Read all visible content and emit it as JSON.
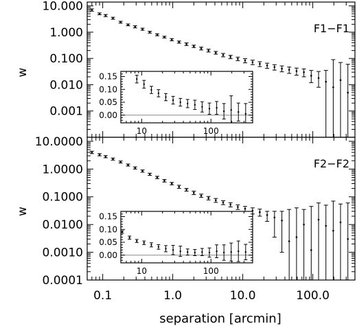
{
  "chart_data": [
    {
      "type": "scatter",
      "panel_label": "F1−F1",
      "ylabel": "w",
      "xlabel": "",
      "xscale": "log",
      "yscale": "log",
      "xlim": [
        0.06,
        400
      ],
      "ylim": [
        0.0001,
        14
      ],
      "x_tick_labels": [],
      "y_tick_labels": [
        {
          "value": 10,
          "label": "10.000"
        },
        {
          "value": 1,
          "label": "1.000"
        },
        {
          "value": 0.1,
          "label": "0.100"
        },
        {
          "value": 0.01,
          "label": "0.010"
        },
        {
          "value": 0.001,
          "label": "0.001"
        }
      ],
      "series": [
        {
          "x": [
            0.07,
            0.09,
            0.11,
            0.14,
            0.18,
            0.23,
            0.29,
            0.37,
            0.47,
            0.6,
            0.76,
            0.97,
            1.23,
            1.57,
            2.0,
            2.55,
            3.24,
            4.12,
            5.25,
            6.68,
            8.5,
            10.8,
            13.8,
            17.5,
            22.3,
            28.4,
            36.2,
            46.0,
            58.6,
            74.6,
            95.0,
            121.0,
            154.0,
            196.0,
            249.0,
            317.0
          ],
          "y": [
            7.0,
            5.0,
            4.3,
            3.4,
            2.4,
            1.9,
            1.6,
            1.3,
            1.0,
            0.8,
            0.65,
            0.52,
            0.42,
            0.35,
            0.29,
            0.24,
            0.2,
            0.165,
            0.135,
            0.115,
            0.097,
            0.083,
            0.072,
            0.062,
            0.054,
            0.047,
            0.041,
            0.037,
            0.033,
            0.03,
            0.022,
            0.018,
            0.013,
            0.008,
            0.015,
            0.005
          ],
          "y_low": [
            6.3,
            4.6,
            3.9,
            3.1,
            2.2,
            1.75,
            1.45,
            1.18,
            0.92,
            0.73,
            0.6,
            0.47,
            0.38,
            0.31,
            0.26,
            0.21,
            0.175,
            0.145,
            0.115,
            0.098,
            0.082,
            0.068,
            0.058,
            0.049,
            0.042,
            0.036,
            0.031,
            0.027,
            0.023,
            0.02,
            0.012,
            0.008,
            0.0001,
            0.0001,
            0.0001,
            0.0001
          ],
          "y_high": [
            7.7,
            5.4,
            4.7,
            3.7,
            2.6,
            2.05,
            1.75,
            1.42,
            1.08,
            0.87,
            0.7,
            0.57,
            0.46,
            0.39,
            0.32,
            0.27,
            0.225,
            0.185,
            0.155,
            0.132,
            0.112,
            0.098,
            0.086,
            0.075,
            0.066,
            0.058,
            0.052,
            0.047,
            0.043,
            0.04,
            0.035,
            0.032,
            0.035,
            0.09,
            0.07,
            0.06
          ]
        }
      ],
      "inset": {
        "xscale": "log",
        "xlim": [
          5,
          400
        ],
        "ylim": [
          -0.03,
          0.17
        ],
        "x_tick_labels": [
          {
            "value": 10,
            "label": "10"
          },
          {
            "value": 100,
            "label": "100"
          }
        ],
        "y_tick_labels": [
          {
            "value": 0.15,
            "label": "0.15"
          },
          {
            "value": 0.1,
            "label": "0.10"
          },
          {
            "value": 0.05,
            "label": "0.05"
          },
          {
            "value": 0.0,
            "label": "0.00"
          }
        ],
        "zero_line": true,
        "series": [
          {
            "x": [
              8.5,
              10.8,
              13.8,
              17.5,
              22.3,
              28.4,
              36.2,
              46.0,
              58.6,
              74.6,
              95.0,
              121.0,
              154.0,
              196.0,
              249.0,
              317.0
            ],
            "y": [
              0.14,
              0.12,
              0.098,
              0.085,
              0.07,
              0.058,
              0.05,
              0.045,
              0.04,
              0.032,
              0.025,
              0.028,
              0.015,
              0.02,
              0.012,
              0.005
            ],
            "y_err": [
              0.015,
              0.015,
              0.014,
              0.014,
              0.014,
              0.015,
              0.015,
              0.016,
              0.018,
              0.02,
              0.022,
              0.025,
              0.03,
              0.055,
              0.035,
              0.04
            ]
          }
        ]
      }
    },
    {
      "type": "scatter",
      "panel_label": "F2−F2",
      "ylabel": "w",
      "xlabel": "separation [arcmin]",
      "xscale": "log",
      "yscale": "log",
      "xlim": [
        0.06,
        400
      ],
      "ylim": [
        0.0001,
        14
      ],
      "x_tick_labels": [
        {
          "value": 0.1,
          "label": "0.1"
        },
        {
          "value": 1,
          "label": "1.0"
        },
        {
          "value": 10,
          "label": "10.0"
        },
        {
          "value": 100,
          "label": "100.0"
        }
      ],
      "y_tick_labels": [
        {
          "value": 10,
          "label": "10.0000"
        },
        {
          "value": 1,
          "label": "1.0000"
        },
        {
          "value": 0.1,
          "label": "0.1000"
        },
        {
          "value": 0.01,
          "label": "0.0100"
        },
        {
          "value": 0.001,
          "label": "0.0010"
        },
        {
          "value": 0.0001,
          "label": "0.0001"
        }
      ],
      "series": [
        {
          "x": [
            0.07,
            0.09,
            0.11,
            0.14,
            0.18,
            0.23,
            0.29,
            0.37,
            0.47,
            0.6,
            0.76,
            0.97,
            1.23,
            1.57,
            2.0,
            2.55,
            3.24,
            4.12,
            5.25,
            6.68,
            8.5,
            10.8,
            13.8,
            17.5,
            22.3,
            28.4,
            36.2,
            46.0,
            58.6,
            74.6,
            95.0,
            121.0,
            154.0,
            196.0,
            249.0,
            317.0
          ],
          "y": [
            4.0,
            3.3,
            2.8,
            2.3,
            1.8,
            1.4,
            1.1,
            0.85,
            0.65,
            0.5,
            0.38,
            0.3,
            0.23,
            0.18,
            0.14,
            0.11,
            0.09,
            0.075,
            0.062,
            0.052,
            0.043,
            0.037,
            0.032,
            0.028,
            0.022,
            0.018,
            0.014,
            0.0025,
            0.0035,
            0.01,
            0.0012,
            0.015,
            0.009,
            0.006,
            0.012,
            0.003
          ],
          "y_low": [
            3.6,
            3.0,
            2.55,
            2.1,
            1.65,
            1.28,
            1.0,
            0.77,
            0.59,
            0.45,
            0.34,
            0.27,
            0.2,
            0.16,
            0.12,
            0.095,
            0.077,
            0.063,
            0.052,
            0.043,
            0.035,
            0.029,
            0.024,
            0.02,
            0.013,
            0.0035,
            0.001,
            0.0001,
            0.0001,
            0.0001,
            0.0001,
            0.0001,
            0.0001,
            0.0001,
            0.0001,
            0.0001
          ],
          "y_high": [
            4.4,
            3.6,
            3.05,
            2.5,
            1.95,
            1.52,
            1.2,
            0.93,
            0.71,
            0.55,
            0.42,
            0.33,
            0.26,
            0.2,
            0.16,
            0.125,
            0.103,
            0.087,
            0.072,
            0.061,
            0.051,
            0.045,
            0.04,
            0.036,
            0.03,
            0.03,
            0.03,
            0.035,
            0.04,
            0.035,
            0.045,
            0.06,
            0.05,
            0.07,
            0.055,
            0.06
          ]
        }
      ],
      "inset": {
        "xscale": "log",
        "xlim": [
          5,
          400
        ],
        "ylim": [
          -0.03,
          0.17
        ],
        "x_tick_labels": [
          {
            "value": 10,
            "label": "10"
          },
          {
            "value": 100,
            "label": "100"
          }
        ],
        "y_tick_labels": [
          {
            "value": 0.15,
            "label": "0.15"
          },
          {
            "value": 0.1,
            "label": "0.10"
          },
          {
            "value": 0.05,
            "label": "0.05"
          },
          {
            "value": 0.0,
            "label": "0.00"
          }
        ],
        "zero_line": true,
        "series": [
          {
            "x": [
              5.25,
              6.68,
              8.5,
              10.8,
              13.8,
              17.5,
              22.3,
              28.4,
              36.2,
              46.0,
              58.6,
              74.6,
              95.0,
              121.0,
              154.0,
              196.0,
              249.0,
              317.0
            ],
            "y": [
              0.09,
              0.068,
              0.055,
              0.048,
              0.04,
              0.032,
              0.025,
              0.02,
              0.015,
              0.012,
              0.01,
              0.012,
              0.01,
              0.015,
              0.01,
              0.012,
              0.015,
              0.012
            ],
            "y_err": [
              0.005,
              0.006,
              0.006,
              0.007,
              0.008,
              0.009,
              0.012,
              0.018,
              0.02,
              0.012,
              0.012,
              0.014,
              0.018,
              0.025,
              0.03,
              0.035,
              0.04,
              0.03
            ]
          }
        ]
      }
    }
  ]
}
